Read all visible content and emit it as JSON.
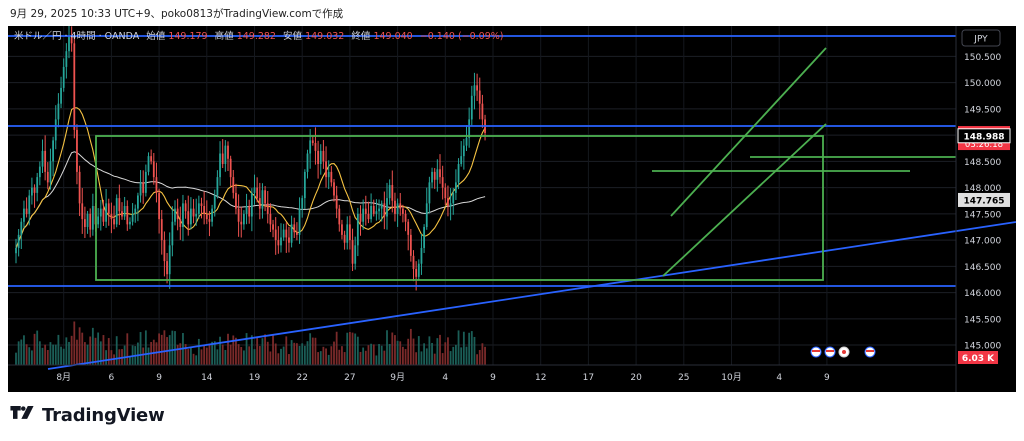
{
  "caption": "9月 29, 2025 10:33 UTC+9、poko0813がTradingView.comで作成",
  "legend": {
    "symbol": "米ドル／円 · 4時間 · OANDA",
    "open_label": "始値",
    "open_value": "149.179",
    "high_label": "高値",
    "high_value": "149.282",
    "low_label": "安値",
    "low_value": "149.032",
    "close_label": "終値",
    "close_value": "149.040",
    "change": "−0.140 (−0.09%)"
  },
  "currency_button": "JPY",
  "footer_brand": "TradingView",
  "colors": {
    "background": "#000000",
    "up": "#26a69a",
    "down": "#ef5350",
    "trendline": "#2962ff",
    "channel": "#4caf50",
    "ma_fast": "#f5c242",
    "ma_slow": "#d8d8d8",
    "price_tag": "#f23645"
  },
  "chart_data": {
    "type": "candlestick",
    "symbol": "USDJPY",
    "timeframe": "4h",
    "y_ticks": [
      150.5,
      150.0,
      149.5,
      149.0,
      148.5,
      148.0,
      147.5,
      147.0,
      146.5,
      146.0,
      145.5,
      145.0
    ],
    "ylim": [
      144.62,
      151.08
    ],
    "x_ticks": [
      {
        "label": "8月",
        "bar": 18
      },
      {
        "label": "6",
        "bar": 36
      },
      {
        "label": "9",
        "bar": 54
      },
      {
        "label": "14",
        "bar": 72
      },
      {
        "label": "19",
        "bar": 90
      },
      {
        "label": "22",
        "bar": 108
      },
      {
        "label": "27",
        "bar": 126
      },
      {
        "label": "9月",
        "bar": 144
      },
      {
        "label": "4",
        "bar": 162
      },
      {
        "label": "9",
        "bar": 180
      },
      {
        "label": "12",
        "bar": 198
      },
      {
        "label": "17",
        "bar": 216
      },
      {
        "label": "20",
        "bar": 234
      },
      {
        "label": "25",
        "bar": 252
      },
      {
        "label": "10月",
        "bar": 270
      },
      {
        "label": "4",
        "bar": 288
      },
      {
        "label": "9",
        "bar": 306
      }
    ],
    "price_labels": [
      {
        "value": 149.04,
        "text": "149.040",
        "sub": "03:26:18",
        "style": "last"
      },
      {
        "value": 148.988,
        "text": "148.988",
        "style": "level"
      },
      {
        "value": 147.765,
        "text": "147.765",
        "style": "ma"
      }
    ],
    "volume_label": "6.03 K",
    "closes": [
      146.85,
      147.1,
      147.35,
      147.6,
      147.5,
      147.85,
      148.0,
      147.9,
      148.2,
      148.4,
      148.7,
      148.3,
      148.1,
      148.5,
      148.9,
      149.3,
      149.6,
      149.9,
      150.3,
      150.6,
      150.9,
      150.75,
      149.1,
      148.3,
      147.7,
      147.4,
      147.25,
      147.5,
      147.2,
      147.65,
      147.3,
      147.45,
      147.6,
      147.35,
      147.7,
      147.5,
      147.4,
      147.3,
      147.8,
      147.55,
      147.45,
      147.65,
      147.3,
      147.35,
      147.5,
      147.6,
      147.85,
      148.1,
      147.9,
      148.3,
      148.6,
      148.5,
      148.2,
      147.9,
      147.4,
      147.0,
      146.6,
      146.35,
      146.9,
      147.35,
      147.6,
      147.4,
      147.25,
      147.7,
      147.55,
      147.3,
      147.6,
      147.45,
      147.5,
      147.7,
      147.65,
      147.5,
      147.4,
      147.35,
      147.6,
      147.85,
      148.2,
      148.65,
      148.45,
      148.8,
      148.55,
      148.2,
      147.9,
      147.6,
      147.35,
      147.3,
      147.5,
      147.65,
      147.45,
      147.9,
      148.0,
      147.8,
      147.6,
      147.95,
      147.7,
      147.5,
      147.3,
      147.2,
      147.0,
      146.9,
      147.05,
      147.2,
      147.05,
      146.95,
      147.3,
      147.15,
      147.1,
      147.6,
      147.8,
      148.3,
      148.65,
      148.9,
      148.85,
      148.7,
      148.45,
      148.7,
      148.5,
      148.2,
      148.3,
      148.1,
      147.85,
      147.6,
      147.3,
      147.1,
      146.95,
      147.3,
      147.0,
      146.55,
      146.9,
      147.5,
      147.35,
      147.6,
      147.5,
      147.4,
      147.65,
      147.5,
      147.55,
      147.6,
      147.7,
      147.45,
      147.8,
      148.05,
      147.75,
      147.5,
      147.7,
      147.6,
      147.5,
      147.35,
      147.1,
      146.7,
      146.45,
      146.3,
      146.55,
      146.85,
      147.25,
      147.7,
      148.1,
      148.3,
      148.15,
      148.35,
      148.2,
      148.0,
      147.8,
      147.65,
      147.7,
      147.9,
      148.1,
      148.45,
      148.6,
      148.8,
      148.95,
      149.3,
      149.75,
      149.95,
      149.85,
      149.6,
      149.3,
      149.04
    ]
  }
}
